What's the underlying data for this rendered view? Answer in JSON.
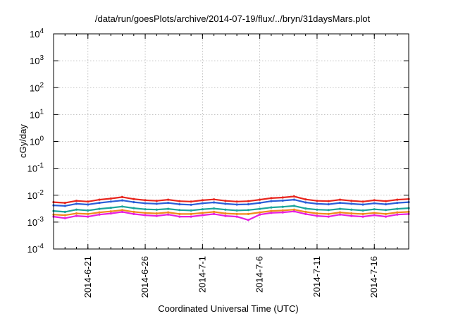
{
  "chart_data": {
    "type": "line",
    "title": "/data/run/goesPlots/archive/2014-07-19/flux/../bryn/31daysMars.plot",
    "xlabel": "Coordinated Universal Time (UTC)",
    "ylabel": "cGy/day",
    "yscale": "log",
    "ylim": [
      0.0001,
      10000
    ],
    "xlim": [
      "2014-06-18",
      "2014-07-19"
    ],
    "grid": true,
    "legend": "none",
    "y_ticks": [
      {
        "base": "10",
        "exp": "-4"
      },
      {
        "base": "10",
        "exp": "-3"
      },
      {
        "base": "10",
        "exp": "-2"
      },
      {
        "base": "10",
        "exp": "-1"
      },
      {
        "base": "10",
        "exp": "0"
      },
      {
        "base": "10",
        "exp": "1"
      },
      {
        "base": "10",
        "exp": "2"
      },
      {
        "base": "10",
        "exp": "3"
      },
      {
        "base": "10",
        "exp": "4"
      }
    ],
    "x_ticks": [
      "2014-6-21",
      "2014-6-26",
      "2014-7-1",
      "2014-7-6",
      "2014-7-11",
      "2014-7-16"
    ],
    "x_dates": [
      "2014-06-18",
      "2014-06-19",
      "2014-06-20",
      "2014-06-21",
      "2014-06-22",
      "2014-06-23",
      "2014-06-24",
      "2014-06-25",
      "2014-06-26",
      "2014-06-27",
      "2014-06-28",
      "2014-06-29",
      "2014-06-30",
      "2014-07-01",
      "2014-07-02",
      "2014-07-03",
      "2014-07-04",
      "2014-07-05",
      "2014-07-06",
      "2014-07-07",
      "2014-07-08",
      "2014-07-09",
      "2014-07-10",
      "2014-07-11",
      "2014-07-12",
      "2014-07-13",
      "2014-07-14",
      "2014-07-15",
      "2014-07-16",
      "2014-07-17",
      "2014-07-18",
      "2014-07-19"
    ],
    "series": [
      {
        "color": "#e8261e",
        "values": [
          0.0055,
          0.0052,
          0.0062,
          0.0058,
          0.0068,
          0.0075,
          0.0085,
          0.0072,
          0.0065,
          0.0062,
          0.0068,
          0.006,
          0.0058,
          0.0065,
          0.007,
          0.0062,
          0.0058,
          0.006,
          0.0068,
          0.0078,
          0.0082,
          0.009,
          0.007,
          0.0062,
          0.006,
          0.0068,
          0.0062,
          0.0058,
          0.0065,
          0.006,
          0.0068,
          0.0072
        ]
      },
      {
        "color": "#2b5fd8",
        "values": [
          0.0042,
          0.004,
          0.0048,
          0.0045,
          0.0052,
          0.0058,
          0.0064,
          0.0055,
          0.005,
          0.0048,
          0.0052,
          0.0046,
          0.0044,
          0.005,
          0.0054,
          0.0048,
          0.0045,
          0.0046,
          0.0052,
          0.006,
          0.0063,
          0.0068,
          0.0054,
          0.0048,
          0.0046,
          0.0052,
          0.0048,
          0.0045,
          0.005,
          0.0046,
          0.0052,
          0.0055
        ]
      },
      {
        "color": "#1aa59a",
        "values": [
          0.0026,
          0.0024,
          0.0029,
          0.0027,
          0.0031,
          0.0034,
          0.0038,
          0.0033,
          0.003,
          0.0029,
          0.0031,
          0.0028,
          0.0027,
          0.003,
          0.0032,
          0.0029,
          0.0027,
          0.0028,
          0.0031,
          0.0035,
          0.0037,
          0.004,
          0.0032,
          0.0029,
          0.0028,
          0.0031,
          0.0029,
          0.0027,
          0.003,
          0.0028,
          0.0031,
          0.0033
        ]
      },
      {
        "color": "#f08a1c",
        "values": [
          0.0019,
          0.0018,
          0.0021,
          0.002,
          0.0023,
          0.0025,
          0.0028,
          0.0024,
          0.0022,
          0.0021,
          0.0023,
          0.002,
          0.002,
          0.0022,
          0.0024,
          0.0021,
          0.002,
          0.002,
          0.0023,
          0.0026,
          0.0027,
          0.0029,
          0.0024,
          0.0021,
          0.002,
          0.0023,
          0.0021,
          0.002,
          0.0022,
          0.002,
          0.0023,
          0.0024
        ]
      },
      {
        "color": "#e81fe0",
        "values": [
          0.0016,
          0.0014,
          0.0017,
          0.0016,
          0.0019,
          0.0021,
          0.0024,
          0.002,
          0.0018,
          0.0017,
          0.0019,
          0.0016,
          0.0016,
          0.0018,
          0.002,
          0.0017,
          0.0016,
          0.0012,
          0.0019,
          0.0022,
          0.0023,
          0.0025,
          0.002,
          0.0017,
          0.0016,
          0.0019,
          0.0017,
          0.0016,
          0.0018,
          0.0016,
          0.0019,
          0.002
        ]
      }
    ]
  }
}
